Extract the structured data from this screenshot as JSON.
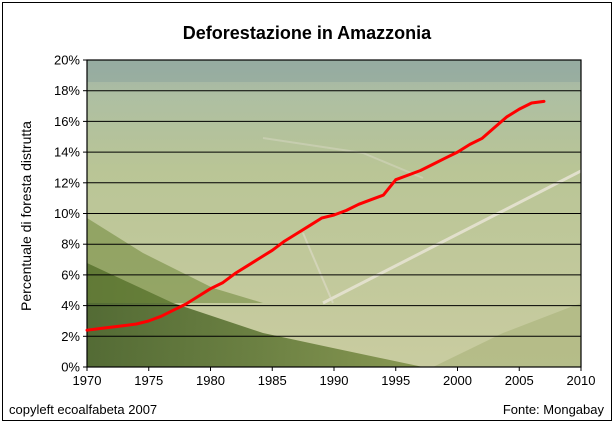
{
  "chart_data": {
    "type": "line",
    "title": "Deforestazione in Amazzonia",
    "xlabel": "",
    "ylabel": "Percentuale di foresta distrutta",
    "xlim": [
      1970,
      2010
    ],
    "ylim": [
      0,
      20
    ],
    "x_ticks": [
      "1970",
      "1975",
      "1980",
      "1985",
      "1990",
      "1995",
      "2000",
      "2005",
      "2010"
    ],
    "y_ticks": [
      "0%",
      "2%",
      "4%",
      "6%",
      "8%",
      "10%",
      "12%",
      "14%",
      "16%",
      "18%",
      "20%"
    ],
    "grid": true,
    "legend": "none",
    "background": "aerial photograph of deforested Amazon forest",
    "series": [
      {
        "color": "#ff0000",
        "x": [
          1970,
          1971,
          1972,
          1973,
          1974,
          1975,
          1976,
          1977,
          1978,
          1979,
          1980,
          1981,
          1982,
          1983,
          1984,
          1985,
          1986,
          1987,
          1988,
          1989,
          1990,
          1991,
          1992,
          1993,
          1994,
          1995,
          1996,
          1997,
          1998,
          1999,
          2000,
          2001,
          2002,
          2003,
          2004,
          2005,
          2006,
          2007
        ],
        "values": [
          2.4,
          2.5,
          2.6,
          2.7,
          2.8,
          3.0,
          3.3,
          3.7,
          4.1,
          4.6,
          5.1,
          5.5,
          6.1,
          6.6,
          7.1,
          7.6,
          8.2,
          8.7,
          9.2,
          9.7,
          9.9,
          10.2,
          10.6,
          10.9,
          11.2,
          12.2,
          12.5,
          12.8,
          13.2,
          13.6,
          14.0,
          14.5,
          14.9,
          15.6,
          16.3,
          16.8,
          17.2,
          17.3
        ]
      }
    ]
  },
  "footer": {
    "copyleft": "copyleft ecoalfabeta 2007",
    "source": "Fonte: Mongabay"
  }
}
